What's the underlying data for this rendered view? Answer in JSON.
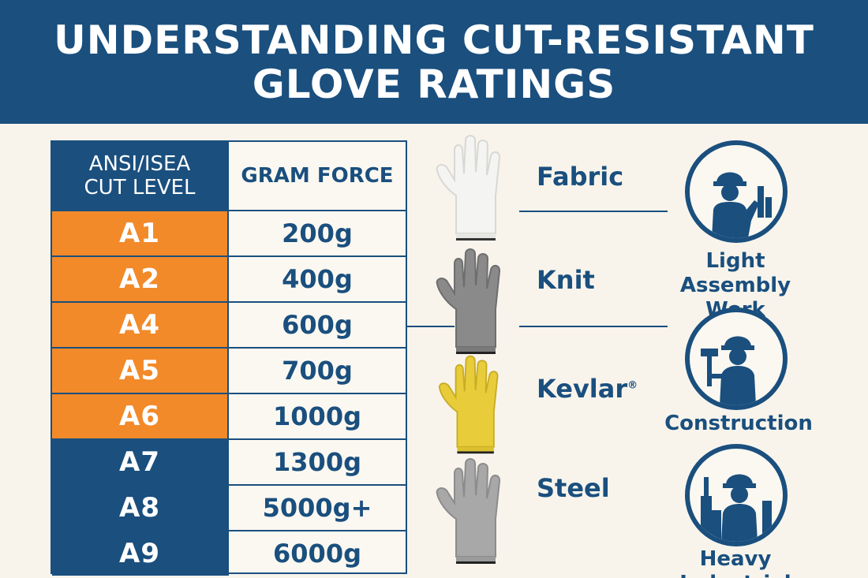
{
  "title": {
    "line1": "UNDERSTANDING CUT-RESISTANT",
    "line2": "GLOVE RATINGS"
  },
  "table": {
    "header_level_line1": "ANSI/ISEA",
    "header_level_line2": "CUT LEVEL",
    "header_force": "GRAM FORCE",
    "rows": [
      {
        "level": "A1",
        "force": "200g",
        "color": "orange"
      },
      {
        "level": "A2",
        "force": "400g",
        "color": "orange"
      },
      {
        "level": "A4",
        "force": "600g",
        "color": "orange"
      },
      {
        "level": "A5",
        "force": "700g",
        "color": "orange"
      },
      {
        "level": "A6",
        "force": "1000g",
        "color": "orange"
      },
      {
        "level": "A7",
        "force": "1300g",
        "color": "blue"
      },
      {
        "level": "A8",
        "force": "5000g+",
        "color": "blue"
      },
      {
        "level": "A9",
        "force": "6000g",
        "color": "blue"
      }
    ]
  },
  "materials": {
    "fabric": "Fabric",
    "knit": "Knit",
    "kevlar": "Kevlar",
    "kevlar_mark": "®",
    "steel": "Steel"
  },
  "usages": {
    "light_line1": "Light Assembly",
    "light_line2": "Work",
    "construction": "Construction",
    "heavy": "Heavy Industrial"
  },
  "colors": {
    "navy": "#1a4f7e",
    "orange": "#f28a2a",
    "background": "#f8f4ec",
    "glove_white": "#f4f4f2",
    "glove_gray": "#8a8a8a",
    "glove_yellow": "#e8cc3a",
    "glove_light_gray": "#a8a8a8"
  },
  "icons": [
    "white-glove-icon",
    "gray-knit-glove-icon",
    "yellow-kevlar-glove-icon",
    "steel-glove-icon",
    "assembly-worker-icon",
    "construction-worker-icon",
    "industrial-worker-icon"
  ]
}
